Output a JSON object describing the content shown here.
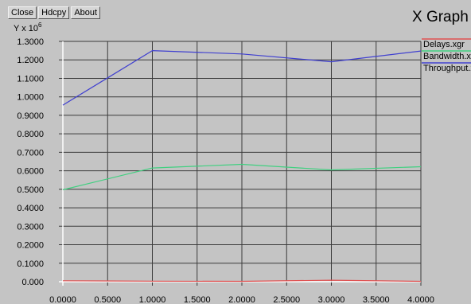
{
  "toolbar": {
    "close_label": "Close",
    "hdcpy_label": "Hdcpy",
    "about_label": "About"
  },
  "window_title": "X Graph",
  "chart_data": {
    "type": "line",
    "title": "",
    "xlabel": "",
    "ylabel_base": "Y x 10",
    "ylabel_exponent": "6",
    "xlim": [
      0,
      4
    ],
    "ylim": [
      0,
      1.3
    ],
    "grid": true,
    "legend_position": "right",
    "x_ticks": [
      "0.0000",
      "0.5000",
      "1.0000",
      "1.5000",
      "2.0000",
      "2.5000",
      "3.0000",
      "3.5000",
      "4.0000"
    ],
    "y_ticks": [
      "0.000",
      "0.1000",
      "0.2000",
      "0.3000",
      "0.4000",
      "0.5000",
      "0.6000",
      "0.7000",
      "0.8000",
      "0.9000",
      "1.0000",
      "1.1000",
      "1.2000",
      "1.3000"
    ],
    "series": [
      {
        "name": "Delays.xgr",
        "color": "#e05050",
        "x": [
          0,
          1,
          2,
          3,
          4
        ],
        "y": [
          0.005,
          0.003,
          0.002,
          0.008,
          0.002
        ]
      },
      {
        "name": "Bandwidth.xgr",
        "color": "#40d080",
        "x": [
          0,
          1,
          2,
          3,
          4
        ],
        "y": [
          0.497,
          0.615,
          0.635,
          0.605,
          0.622
        ]
      },
      {
        "name": "Throughput.xgr",
        "color": "#4040d0",
        "x": [
          0,
          1,
          2,
          3,
          4
        ],
        "y": [
          0.955,
          1.25,
          1.232,
          1.19,
          1.248
        ]
      }
    ]
  }
}
